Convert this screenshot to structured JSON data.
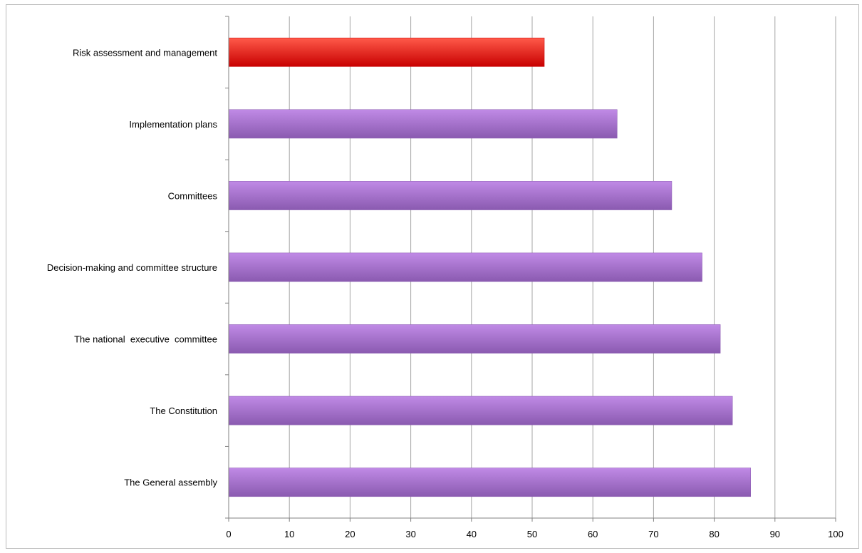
{
  "chart_data": {
    "type": "bar",
    "orientation": "horizontal",
    "title": "",
    "xlabel": "",
    "ylabel": "",
    "categories": [
      "Risk assessment and management",
      "Implementation plans",
      "Committees",
      "Decision-making and committee structure",
      "The national  executive  committee",
      "The Constitution",
      "The General assembly"
    ],
    "values": [
      52,
      64,
      73,
      78,
      81,
      83,
      86
    ],
    "highlight_index": 0,
    "xlim": [
      0,
      100
    ],
    "xticks": [
      0,
      10,
      20,
      30,
      40,
      50,
      60,
      70,
      80,
      90,
      100
    ],
    "grid": "vertical",
    "legend": "none",
    "colors": {
      "bar_top": "#c08ae6",
      "bar_bottom": "#8a5ab0",
      "highlight_top": "#ff5a4a",
      "highlight_bottom": "#c80000",
      "grid": "#a6a6a6",
      "axis": "#808080"
    }
  }
}
